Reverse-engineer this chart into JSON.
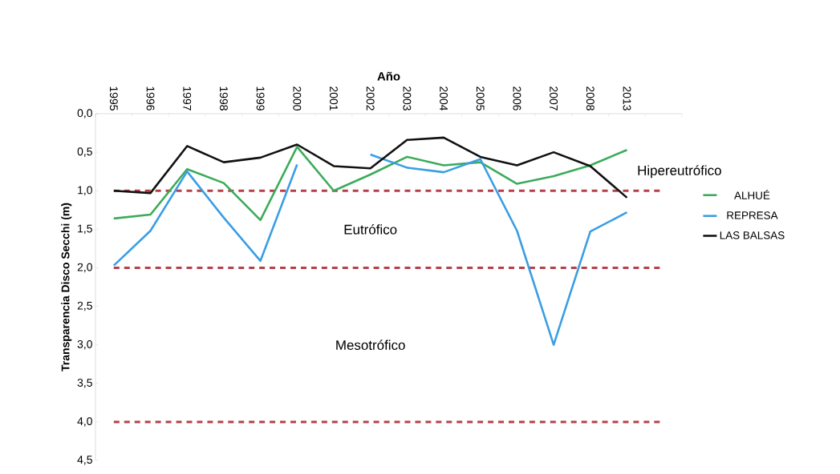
{
  "chart_data": {
    "type": "line",
    "xlabel": "Año",
    "ylabel": "Transparencia Disco Secchi (m)",
    "categories": [
      "1995",
      "1996",
      "1997",
      "1998",
      "1999",
      "2000",
      "2001",
      "2002",
      "2003",
      "2004",
      "2005",
      "2006",
      "2007",
      "2008",
      "2013",
      null
    ],
    "series": [
      {
        "name": "ALHUÉ",
        "color": "#3cab5a",
        "values": [
          1.36,
          1.31,
          0.72,
          0.9,
          1.38,
          0.43,
          1.0,
          0.79,
          0.56,
          0.67,
          0.63,
          0.91,
          0.81,
          0.67,
          0.47,
          null
        ]
      },
      {
        "name": "REPRESA",
        "color": "#3a9ee4",
        "values": [
          1.97,
          1.52,
          0.75,
          1.35,
          1.91,
          0.66,
          null,
          0.53,
          0.7,
          0.76,
          0.59,
          1.52,
          3.0,
          1.53,
          1.28,
          null
        ]
      },
      {
        "name": "LAS BALSAS",
        "color": "#111111",
        "values": [
          1.0,
          1.03,
          0.42,
          0.63,
          0.57,
          0.4,
          0.68,
          0.71,
          0.34,
          0.31,
          0.56,
          0.67,
          0.5,
          0.68,
          1.09,
          null
        ]
      }
    ],
    "ylim": [
      4.5,
      0
    ],
    "yticks": [
      {
        "value": 0,
        "label": "0,0"
      },
      {
        "value": 0.5,
        "label": "0,5"
      },
      {
        "value": 1,
        "label": "1,0"
      },
      {
        "value": 1.5,
        "label": "1,5"
      },
      {
        "value": 2,
        "label": "2,0"
      },
      {
        "value": 2.5,
        "label": "2,5"
      },
      {
        "value": 3,
        "label": "3,0"
      },
      {
        "value": 3.5,
        "label": "3,5"
      },
      {
        "value": 4,
        "label": "4,0"
      },
      {
        "value": 4.5,
        "label": "4,5"
      }
    ],
    "ref_lines": [
      {
        "axis": "y",
        "value": 1,
        "color": "#b5404a",
        "line_style": "dashed"
      },
      {
        "axis": "y",
        "value": 2,
        "color": "#b5404a",
        "line_style": "dashed"
      },
      {
        "axis": "y",
        "value": 4,
        "color": "#b5404a",
        "line_style": "dashed"
      }
    ],
    "annotations": [
      "Hipereutrófico",
      "Eutrófico",
      "Mesotrófico"
    ],
    "legend": "right",
    "marker": "none",
    "line_style": "solid",
    "grid": false
  }
}
